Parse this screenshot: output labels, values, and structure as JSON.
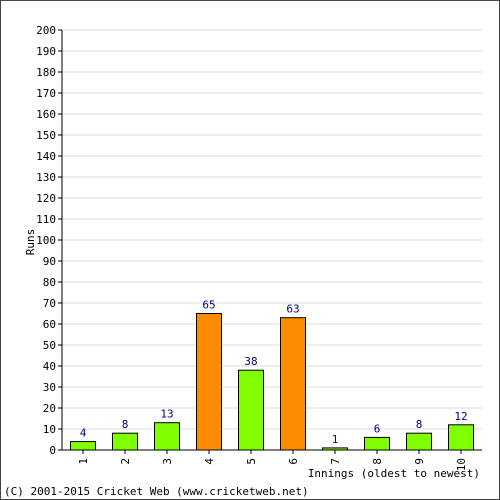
{
  "footer": "(C) 2001-2015 Cricket Web (www.cricketweb.net)",
  "colors": {
    "normal_bar": "#80ff00",
    "highlight_bar": "#ff8c00",
    "value_label": "#000080",
    "grid": "#dddddd",
    "axis": "#000000"
  },
  "chart_data": {
    "type": "bar",
    "xlabel": "Innings (oldest to newest)",
    "ylabel": "Runs",
    "ylim": [
      0,
      200
    ],
    "yticks": [
      0,
      10,
      20,
      30,
      40,
      50,
      60,
      70,
      80,
      90,
      100,
      110,
      120,
      130,
      140,
      150,
      160,
      170,
      180,
      190,
      200
    ],
    "grid": true,
    "categories": [
      "1",
      "2",
      "3",
      "4",
      "5",
      "6",
      "7",
      "8",
      "9",
      "10"
    ],
    "values": [
      4,
      8,
      13,
      65,
      38,
      63,
      1,
      6,
      8,
      12
    ],
    "bar_colors": [
      "#80ff00",
      "#80ff00",
      "#80ff00",
      "#ff8c00",
      "#80ff00",
      "#ff8c00",
      "#80ff00",
      "#80ff00",
      "#80ff00",
      "#80ff00"
    ]
  }
}
